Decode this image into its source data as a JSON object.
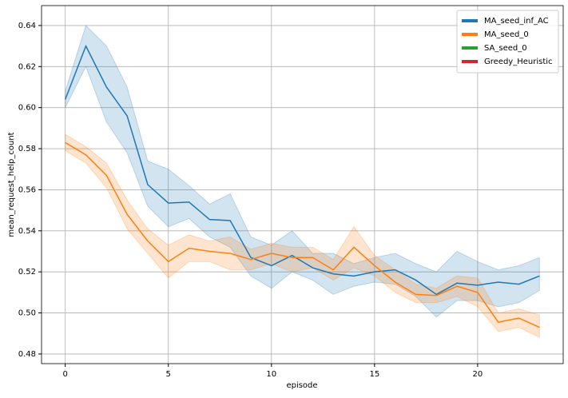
{
  "chart_data": {
    "type": "line",
    "x_label": "episode",
    "y_label": "mean_request_help_count",
    "x": [
      0,
      1,
      2,
      3,
      4,
      5,
      6,
      7,
      8,
      9,
      10,
      11,
      12,
      13,
      14,
      15,
      16,
      17,
      18,
      19,
      20,
      21,
      22,
      23
    ],
    "series": [
      {
        "name": "MA_seed_inf_AC",
        "color": "#1f77b4",
        "values": [
          0.604,
          0.63,
          0.61,
          0.596,
          0.5625,
          0.5535,
          0.554,
          0.5455,
          0.545,
          0.527,
          0.523,
          0.528,
          0.522,
          0.519,
          0.518,
          0.52,
          0.521,
          0.516,
          0.509,
          0.5145,
          0.5135,
          0.515,
          0.514,
          0.518
        ],
        "lower": [
          0.6,
          0.62,
          0.593,
          0.578,
          0.552,
          0.542,
          0.546,
          0.537,
          0.532,
          0.518,
          0.512,
          0.52,
          0.516,
          0.509,
          0.513,
          0.515,
          0.514,
          0.508,
          0.498,
          0.506,
          0.506,
          0.503,
          0.505,
          0.511
        ],
        "upper": [
          0.608,
          0.64,
          0.63,
          0.61,
          0.574,
          0.57,
          0.562,
          0.553,
          0.558,
          0.537,
          0.533,
          0.54,
          0.529,
          0.529,
          0.524,
          0.527,
          0.529,
          0.524,
          0.52,
          0.53,
          0.525,
          0.521,
          0.523,
          0.527
        ]
      },
      {
        "name": "MA_seed_0",
        "color": "#ff7f0e",
        "values": [
          0.583,
          0.577,
          0.567,
          0.548,
          0.535,
          0.525,
          0.5315,
          0.53,
          0.529,
          0.526,
          0.529,
          0.527,
          0.527,
          0.521,
          0.532,
          0.523,
          0.515,
          0.509,
          0.5085,
          0.513,
          0.51,
          0.4955,
          0.4975,
          0.493
        ],
        "lower": [
          0.579,
          0.573,
          0.561,
          0.541,
          0.529,
          0.517,
          0.525,
          0.525,
          0.521,
          0.521,
          0.524,
          0.52,
          0.522,
          0.516,
          0.522,
          0.518,
          0.51,
          0.505,
          0.505,
          0.508,
          0.503,
          0.491,
          0.493,
          0.488
        ],
        "upper": [
          0.587,
          0.581,
          0.573,
          0.555,
          0.541,
          0.533,
          0.538,
          0.535,
          0.537,
          0.531,
          0.534,
          0.532,
          0.532,
          0.526,
          0.542,
          0.528,
          0.521,
          0.514,
          0.512,
          0.518,
          0.517,
          0.5,
          0.502,
          0.499
        ]
      },
      {
        "name": "SA_seed_0",
        "color": "#2ca02c",
        "values": [
          null,
          null,
          null,
          null,
          null,
          null,
          null,
          null,
          null,
          null,
          null,
          null,
          null,
          null,
          null,
          null,
          null,
          null,
          null,
          null,
          null,
          null,
          null,
          null
        ]
      },
      {
        "name": "Greedy_Heuristic",
        "color": "#d62728",
        "values": [
          null,
          null,
          null,
          null,
          null,
          null,
          null,
          null,
          null,
          null,
          null,
          null,
          null,
          null,
          null,
          null,
          null,
          null,
          null,
          null,
          null,
          null,
          null,
          null
        ]
      }
    ],
    "xlim": [
      -1.15,
      24.15
    ],
    "ylim": [
      0.4753,
      0.6497
    ],
    "xticks": [
      0,
      5,
      10,
      15,
      20
    ],
    "yticks": [
      0.48,
      {
        "value": 0.5,
        "label": "0.50"
      },
      0.52,
      0.54,
      0.56,
      0.58,
      {
        "value": 0.6,
        "label": "0.60"
      },
      0.62,
      0.64
    ],
    "grid": true,
    "legend": "upper right"
  }
}
